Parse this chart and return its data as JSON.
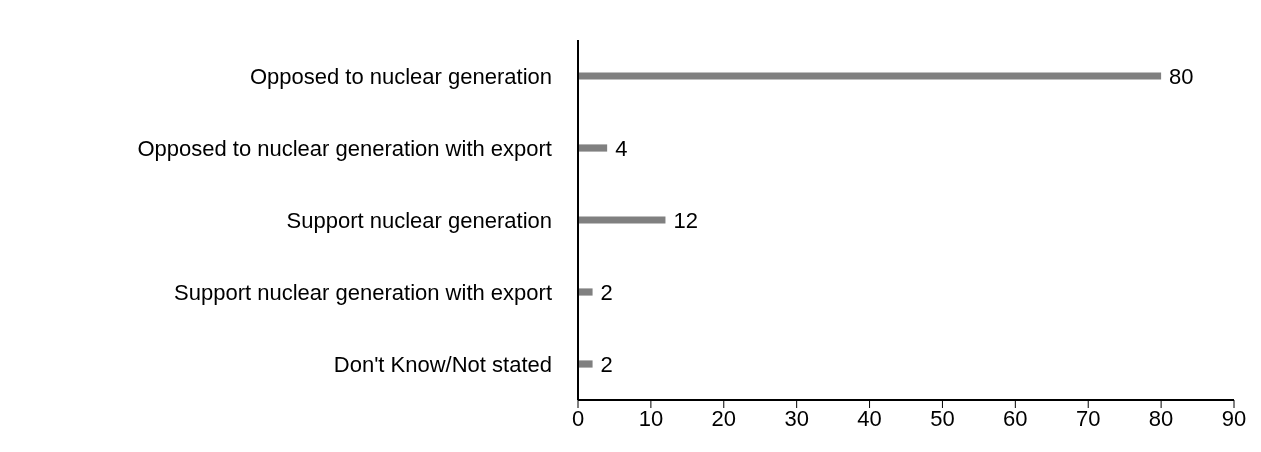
{
  "chart_data": {
    "type": "bar",
    "orientation": "horizontal",
    "categories": [
      "Opposed to nuclear generation",
      "Opposed to nuclear generation with export",
      "Support nuclear generation",
      "Support nuclear generation with export",
      "Don't Know/Not stated"
    ],
    "values": [
      80,
      4,
      12,
      2,
      2
    ],
    "color": "#808080",
    "xlim": [
      0,
      90
    ],
    "xticks": [
      0,
      10,
      20,
      30,
      40,
      50,
      60,
      70,
      80,
      90
    ],
    "data_labels": true,
    "grid": false
  }
}
